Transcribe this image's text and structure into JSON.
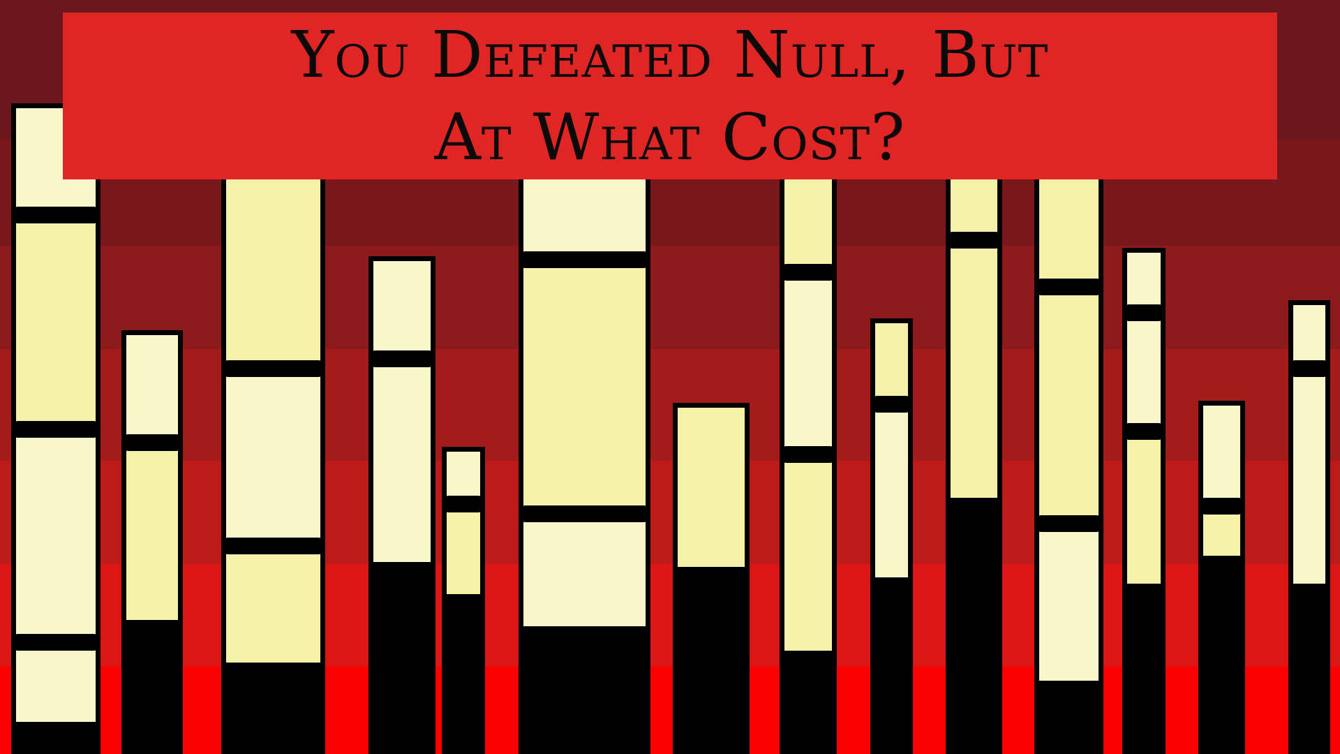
{
  "title": {
    "line1": "You Defeated Null, But",
    "line2": "At What Cost?"
  },
  "colors": {
    "banner": "#e02525",
    "pillar_outline": "#000000",
    "segment_pale": "#faf6cc",
    "segment_yellow": "#f6f1a9",
    "bands": [
      "#6b171b",
      "#79181b",
      "#8c1a1c",
      "#a31b1b",
      "#bf1a1a",
      "#dc1515",
      "#fa0000"
    ]
  },
  "health_levels": [
    0.95,
    0.68,
    0.85,
    0.61,
    0.47,
    0.79,
    0.46,
    0.83,
    0.59,
    0.58,
    0.88,
    0.66,
    0.43,
    0.62
  ]
}
